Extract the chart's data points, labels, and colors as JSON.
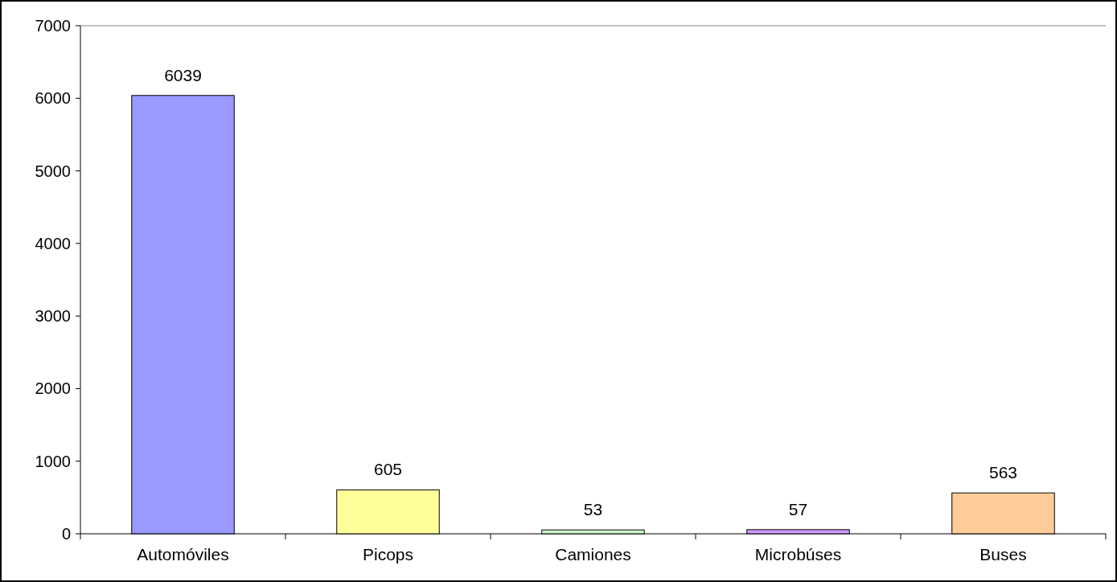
{
  "chart_data": {
    "type": "bar",
    "categories": [
      "Automóviles",
      "Picops",
      "Camiones",
      "Microbúses",
      "Buses"
    ],
    "values": [
      6039,
      605,
      53,
      57,
      563
    ],
    "colors": [
      "#9999ff",
      "#ffff99",
      "#ccffcc",
      "#cc99ff",
      "#ffcc99"
    ],
    "ylim": [
      0,
      7000
    ],
    "yticks": [
      0,
      1000,
      2000,
      3000,
      4000,
      5000,
      6000,
      7000
    ],
    "data_labels": true,
    "grid": false
  }
}
